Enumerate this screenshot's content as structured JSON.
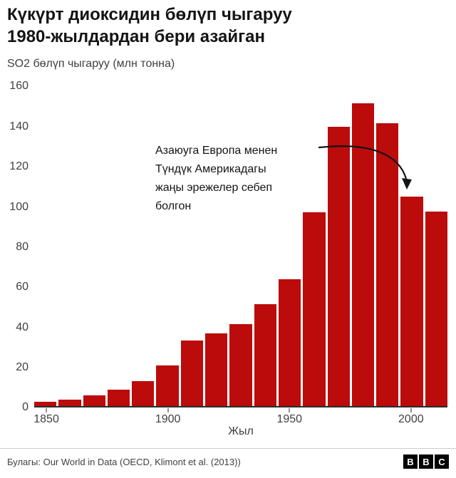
{
  "header": {
    "title": "Күкүрт диоксидин бөлүп чыгаруу\n1980-жылдардан бери азайган",
    "subtitle": "SO2 бөлүп чыгаруу (млн тонна)"
  },
  "chart_data": {
    "type": "bar",
    "title": "Күкүрт диоксидин бөлүп чыгаруу 1980-жылдардан бери азайган",
    "subtitle": "SO2 бөлүп чыгаруу (млн тонна)",
    "categories": [
      1850,
      1860,
      1870,
      1880,
      1890,
      1900,
      1910,
      1920,
      1930,
      1940,
      1950,
      1960,
      1970,
      1980,
      1990,
      2000,
      2010
    ],
    "values": [
      2.4,
      3.5,
      5.5,
      8.5,
      12.5,
      20.5,
      33,
      36.5,
      41,
      51,
      63.5,
      97,
      140,
      151.5,
      141.5,
      105,
      97.5
    ],
    "xlabel": "Жыл",
    "ylabel": "",
    "ylim": [
      0,
      160
    ],
    "yticks": [
      0,
      20,
      40,
      60,
      80,
      100,
      120,
      140,
      160
    ],
    "xticks": [
      {
        "label": "1850",
        "index": 0
      },
      {
        "label": "1900",
        "index": 5
      },
      {
        "label": "1950",
        "index": 10
      },
      {
        "label": "2000",
        "index": 15
      }
    ],
    "bar_color": "#bb0b0b",
    "grid": false,
    "legend": "none",
    "annotation": "Азаюуга Европа менен\nТүндүк Америкадагы\nжаңы эрежелер себеп\nболгон"
  },
  "footer": {
    "source": "Булагы: Our World in Data (OECD, Klimont et al. (2013))",
    "logo_blocks": [
      "B",
      "B",
      "C"
    ]
  }
}
